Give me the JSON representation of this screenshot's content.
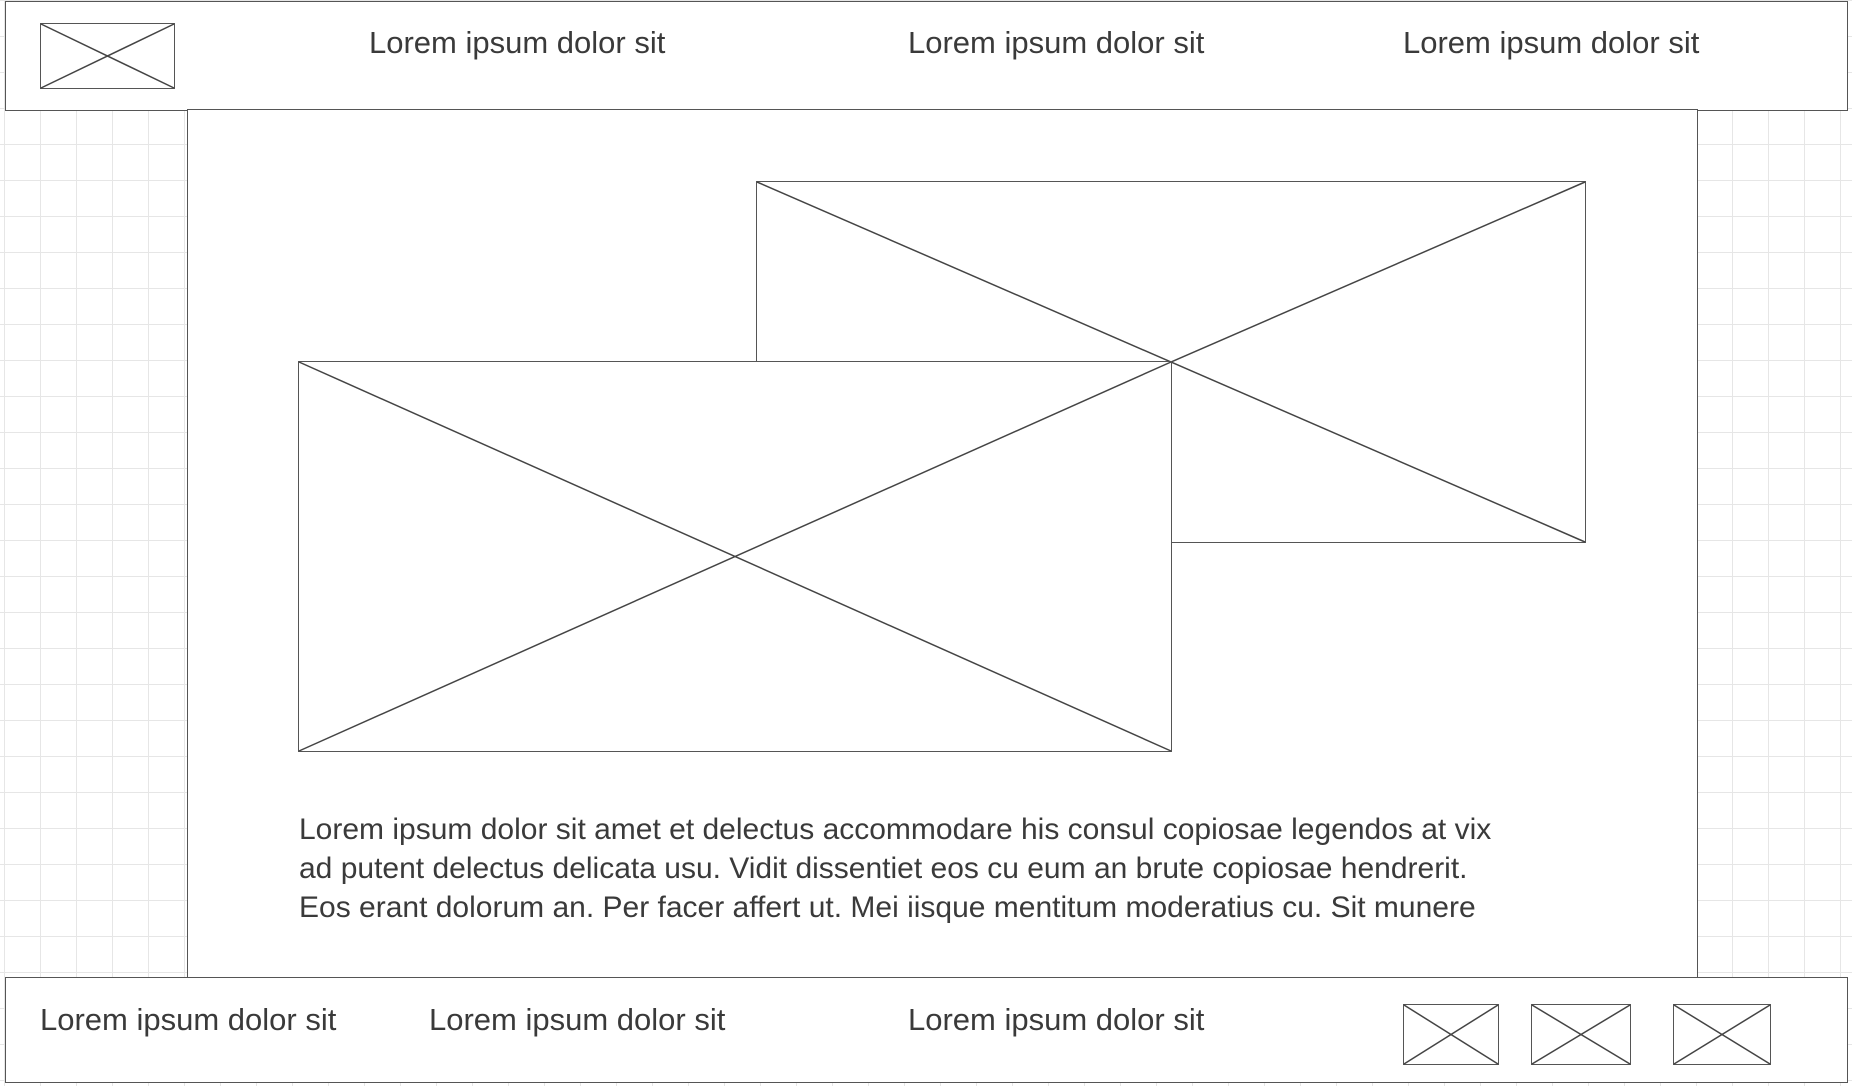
{
  "header": {
    "nav_items": [
      "Lorem ipsum dolor sit",
      "Lorem ipsum dolor sit",
      "Lorem ipsum dolor sit"
    ]
  },
  "content": {
    "paragraph_lines": [
      "Lorem ipsum dolor sit amet et delectus accommodare his consul copiosae legendos at vix",
      "ad putent delectus delicata usu. Vidit dissentiet eos cu eum an brute copiosae hendrerit.",
      "Eos erant dolorum an. Per facer affert ut. Mei iisque mentitum moderatius cu. Sit munere"
    ]
  },
  "footer": {
    "links": [
      "Lorem ipsum dolor sit",
      "Lorem ipsum dolor sit",
      "Lorem ipsum dolor sit"
    ]
  },
  "colors": {
    "stroke": "#444444",
    "grid": "#e6e6e6",
    "text": "#3a3a3a"
  }
}
